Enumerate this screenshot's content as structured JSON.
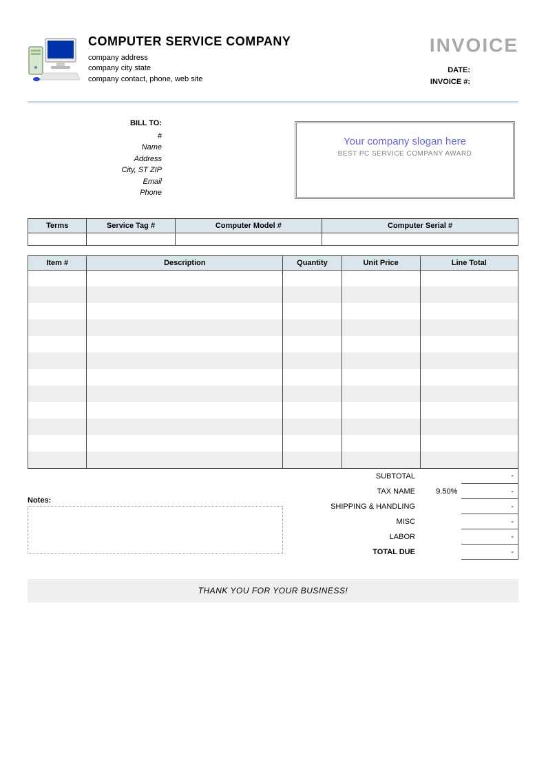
{
  "header": {
    "company_name": "COMPUTER SERVICE COMPANY",
    "address_line": "company address",
    "city_state_line": "company city state",
    "contact_line": "company contact, phone, web site",
    "invoice_word": "INVOICE",
    "date_label": "DATE:",
    "invoice_no_label": "INVOICE #:"
  },
  "bill_to": {
    "title": "BILL TO:",
    "hash": "#",
    "name": "Name",
    "address": "Address",
    "city_zip": "City, ST ZIP",
    "email": "Email",
    "phone": "Phone"
  },
  "slogan": {
    "main": "Your company slogan here",
    "sub": "BEST PC SERVICE COMPANY AWARD"
  },
  "specs": {
    "columns": [
      "Terms",
      "Service Tag #",
      "Computer Model #",
      "Computer Serial #"
    ]
  },
  "items": {
    "columns": [
      "Item #",
      "Description",
      "Quantity",
      "Unit Price",
      "Line Total"
    ],
    "row_count": 12,
    "alt_row_color": "#eeeeee",
    "header_bg": "#dbe6ec",
    "border_color": "#444444"
  },
  "notes": {
    "label": "Notes:"
  },
  "totals": {
    "rows": [
      {
        "label": "SUBTOTAL",
        "mid": "",
        "val": "-"
      },
      {
        "label": "TAX NAME",
        "mid": "9.50%",
        "val": "-"
      },
      {
        "label": "SHIPPING & HANDLING",
        "mid": "",
        "val": "-"
      },
      {
        "label": "MISC",
        "mid": "",
        "val": "-"
      },
      {
        "label": "LABOR",
        "mid": "",
        "val": "-"
      },
      {
        "label": "TOTAL DUE",
        "mid": "",
        "val": "-"
      }
    ]
  },
  "footer": {
    "thank_you": "THANK YOU FOR YOUR BUSINESS!"
  },
  "colors": {
    "header_bg": "#dbe6ec",
    "alt_row": "#eeeeee",
    "border": "#444444",
    "slogan_text": "#6666cc",
    "slogan_sub": "#808080",
    "invoice_gray": "#a9a9a9"
  }
}
